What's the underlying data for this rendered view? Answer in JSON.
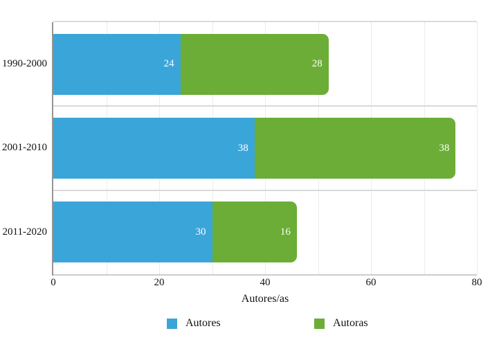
{
  "chart_data": {
    "type": "bar",
    "orientation": "horizontal",
    "stacked": true,
    "title": "",
    "xlabel": "Autores/as",
    "ylabel": "",
    "categories": [
      "1990-2000",
      "2001-2010",
      "2011-2020"
    ],
    "series": [
      {
        "name": "Autores",
        "color": "#3aa5d9",
        "values": [
          24,
          38,
          30
        ]
      },
      {
        "name": "Autoras",
        "color": "#6bad36",
        "values": [
          28,
          38,
          16
        ]
      }
    ],
    "totals": [
      52,
      76,
      46
    ],
    "bar_labels_shown": true,
    "bar_label_color": "#ffffff",
    "xticks": [
      0,
      20,
      40,
      60,
      80
    ],
    "xlim": [
      0,
      80
    ],
    "gridline_step": 10,
    "grid": true,
    "gridline_color": "#d9d9d9",
    "legend_position": "bottom",
    "legend": [
      "Autores",
      "Autoras"
    ]
  }
}
